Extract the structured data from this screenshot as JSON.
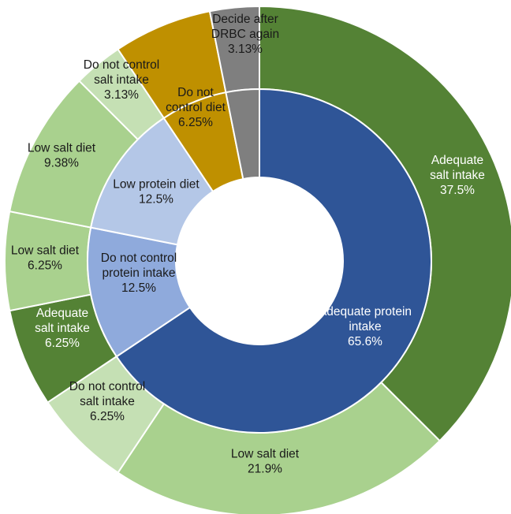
{
  "chart_data": {
    "type": "sunburst",
    "title": "",
    "inner_ring": [
      {
        "label": "Adequate protein intake",
        "value": 65.6,
        "display": "65.6%",
        "color": "#2f5597",
        "text_color": "#ffffff"
      },
      {
        "label": "Do not control protein intake",
        "value": 12.5,
        "display": "12.5%",
        "color": "#8faadc",
        "text_color": "#1a1a1a"
      },
      {
        "label": "Low protein diet",
        "value": 12.5,
        "display": "12.5%",
        "color": "#b4c7e7",
        "text_color": "#1a1a1a"
      },
      {
        "label": "Do not control diet",
        "value": 6.25,
        "display": "6.25%",
        "color": "#bf9000",
        "text_color": "#1a1a1a"
      },
      {
        "label": "Decide after DRBC again",
        "value": 3.13,
        "display": "3.13%",
        "color": "#7f7f7f",
        "text_color": "#1a1a1a"
      }
    ],
    "outer_ring": [
      {
        "label": "Adequate salt intake",
        "value": 37.5,
        "display": "37.5%",
        "parent": "Adequate protein intake",
        "color": "#548235",
        "text_color": "#ffffff"
      },
      {
        "label": "Low salt diet",
        "value": 21.9,
        "display": "21.9%",
        "parent": "Adequate protein intake",
        "color": "#a9d18e",
        "text_color": "#1a1a1a"
      },
      {
        "label": "Do not control salt intake",
        "value": 6.25,
        "display": "6.25%",
        "parent": "Adequate protein intake",
        "color": "#c5e0b4",
        "text_color": "#1a1a1a"
      },
      {
        "label": "Adequate salt intake",
        "value": 6.25,
        "display": "6.25%",
        "parent": "Do not control protein intake",
        "color": "#548235",
        "text_color": "#ffffff"
      },
      {
        "label": "Low salt diet",
        "value": 6.25,
        "display": "6.25%",
        "parent": "Do not control protein intake",
        "color": "#a9d18e",
        "text_color": "#1a1a1a"
      },
      {
        "label": "Low salt diet",
        "value": 9.38,
        "display": "9.38%",
        "parent": "Low protein diet",
        "color": "#a9d18e",
        "text_color": "#1a1a1a"
      },
      {
        "label": "Do not control salt intake",
        "value": 3.13,
        "display": "3.13%",
        "parent": "Low protein diet",
        "color": "#c5e0b4",
        "text_color": "#1a1a1a"
      },
      {
        "label": "",
        "value": 6.25,
        "display": "",
        "parent": "Do not control diet",
        "color": "#bf9000",
        "text_color": "#1a1a1a"
      },
      {
        "label": "",
        "value": 3.13,
        "display": "",
        "parent": "Decide after DRBC again",
        "color": "#7f7f7f",
        "text_color": "#1a1a1a"
      }
    ]
  }
}
